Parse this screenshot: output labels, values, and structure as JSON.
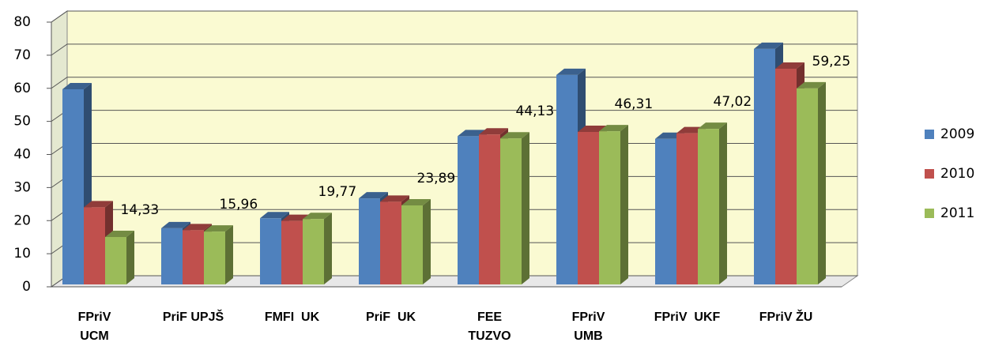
{
  "chart_data": {
    "type": "bar3d",
    "categories": [
      "FPriV\nUCM",
      "PriF UPJŠ",
      "FMFI  UK",
      "PriF  UK",
      "FEE\nTUZVO",
      "FPriV\nUMB",
      "FPriV  UKF",
      "FPriV ŽU"
    ],
    "series": [
      {
        "name": "2009",
        "color": "#4f81bd",
        "values": [
          59,
          17,
          20,
          26,
          44.8,
          63.3,
          44,
          71.2
        ]
      },
      {
        "name": "2010",
        "color": "#c0504d",
        "values": [
          23.3,
          16.4,
          19.2,
          25,
          45.3,
          46.1,
          45.7,
          65.2
        ]
      },
      {
        "name": "2011",
        "color": "#9bbb59",
        "values": [
          14.33,
          15.96,
          19.77,
          23.89,
          44.13,
          46.31,
          47.02,
          59.25
        ],
        "value_labels": [
          "14,33",
          "15,96",
          "19,77",
          "23,89",
          "44,13",
          "46,31",
          "47,02",
          "59,25"
        ]
      }
    ],
    "ylim": [
      0,
      80
    ],
    "yticks": [
      0,
      10,
      20,
      30,
      40,
      50,
      60,
      70,
      80
    ],
    "grid": true,
    "legend": "right"
  }
}
